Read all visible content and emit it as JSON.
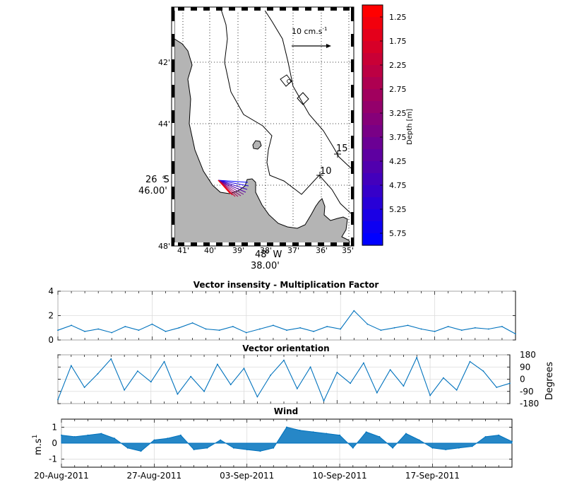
{
  "map": {
    "lat_ticks": [
      "42'",
      "44'",
      "48'"
    ],
    "lon_ticks": [
      "41'",
      "40'",
      "39'",
      "38'",
      "37'",
      "36'",
      "35'"
    ],
    "lat_label_deg": "26",
    "lat_label_hemi": "S",
    "lat_label_min": "46.00'",
    "lon_label_deg": "48",
    "lon_label_hemi": "W",
    "lon_label_min": "38.00'",
    "scale_text": "10 cm.s",
    "scale_sup": "-1",
    "station_labels": [
      "15",
      "10"
    ],
    "colors": {
      "land": "#b4b4b4",
      "coast": "#000000",
      "vector_blue": "#0000ff",
      "vector_red": "#ff0000"
    }
  },
  "colorbar": {
    "label": "Depth [m]",
    "ticks": [
      "1.25",
      "1.75",
      "2.25",
      "2.75",
      "3.25",
      "3.75",
      "4.25",
      "4.75",
      "5.25",
      "5.75"
    ],
    "top_color": "#ff0000",
    "bottom_color": "#0000ff"
  },
  "chart_data": [
    {
      "type": "line",
      "title": "Vector insensity - Multiplication Factor",
      "ylim": [
        0,
        4
      ],
      "yticks": [
        "4",
        "2",
        "0"
      ],
      "x_range": [
        "2011-08-20",
        "2011-09-23"
      ],
      "color": "#0072bd",
      "x": [
        "2011-08-20",
        "2011-08-21",
        "2011-08-22",
        "2011-08-23",
        "2011-08-24",
        "2011-08-25",
        "2011-08-26",
        "2011-08-27",
        "2011-08-28",
        "2011-08-29",
        "2011-08-30",
        "2011-08-31",
        "2011-09-01",
        "2011-09-02",
        "2011-09-03",
        "2011-09-04",
        "2011-09-05",
        "2011-09-06",
        "2011-09-07",
        "2011-09-08",
        "2011-09-09",
        "2011-09-10",
        "2011-09-11",
        "2011-09-12",
        "2011-09-13",
        "2011-09-14",
        "2011-09-15",
        "2011-09-16",
        "2011-09-17",
        "2011-09-18",
        "2011-09-19",
        "2011-09-20",
        "2011-09-21",
        "2011-09-22",
        "2011-09-23"
      ],
      "values": [
        0.8,
        1.2,
        0.7,
        0.9,
        0.6,
        1.1,
        0.8,
        1.3,
        0.7,
        1.0,
        1.4,
        0.9,
        0.8,
        1.1,
        0.6,
        0.9,
        1.2,
        0.8,
        1.0,
        0.7,
        1.1,
        0.9,
        2.4,
        1.3,
        0.8,
        1.0,
        1.2,
        0.9,
        0.7,
        1.1,
        0.8,
        1.0,
        0.9,
        1.1,
        0.5
      ]
    },
    {
      "type": "line",
      "title": "Vector orientation",
      "ylabel": "Degrees",
      "ylim": [
        -180,
        180
      ],
      "yticks": [
        "180",
        "90",
        "0",
        "-90",
        "-180"
      ],
      "x_range": [
        "2011-08-20",
        "2011-09-23"
      ],
      "color": "#0072bd",
      "x": [
        "2011-08-20",
        "2011-08-21",
        "2011-08-22",
        "2011-08-23",
        "2011-08-24",
        "2011-08-25",
        "2011-08-26",
        "2011-08-27",
        "2011-08-28",
        "2011-08-29",
        "2011-08-30",
        "2011-08-31",
        "2011-09-01",
        "2011-09-02",
        "2011-09-03",
        "2011-09-04",
        "2011-09-05",
        "2011-09-06",
        "2011-09-07",
        "2011-09-08",
        "2011-09-09",
        "2011-09-10",
        "2011-09-11",
        "2011-09-12",
        "2011-09-13",
        "2011-09-14",
        "2011-09-15",
        "2011-09-16",
        "2011-09-17",
        "2011-09-18",
        "2011-09-19",
        "2011-09-20",
        "2011-09-21",
        "2011-09-22",
        "2011-09-23"
      ],
      "values": [
        -150,
        100,
        -60,
        40,
        150,
        -80,
        60,
        -20,
        130,
        -110,
        20,
        -90,
        110,
        -40,
        80,
        -130,
        30,
        140,
        -70,
        90,
        -160,
        50,
        -30,
        120,
        -100,
        70,
        -50,
        160,
        -120,
        10,
        -80,
        130,
        60,
        -60,
        -30
      ]
    },
    {
      "type": "area",
      "title": "Wind",
      "ylabel": "m.s",
      "ylabel_sup": "1",
      "ylim": [
        -1.5,
        1.5
      ],
      "yticks": [
        "1",
        "0",
        "-1"
      ],
      "x_range": [
        "2011-08-20",
        "2011-09-23"
      ],
      "xtick_labels": [
        "20-Aug-2011",
        "27-Aug-2011",
        "03-Sep-2011",
        "10-Sep-2011",
        "17-Sep-2011"
      ],
      "color": "#0072bd",
      "x": [
        "2011-08-20",
        "2011-08-21",
        "2011-08-22",
        "2011-08-23",
        "2011-08-24",
        "2011-08-25",
        "2011-08-26",
        "2011-08-27",
        "2011-08-28",
        "2011-08-29",
        "2011-08-30",
        "2011-08-31",
        "2011-09-01",
        "2011-09-02",
        "2011-09-03",
        "2011-09-04",
        "2011-09-05",
        "2011-09-06",
        "2011-09-07",
        "2011-09-08",
        "2011-09-09",
        "2011-09-10",
        "2011-09-11",
        "2011-09-12",
        "2011-09-13",
        "2011-09-14",
        "2011-09-15",
        "2011-09-16",
        "2011-09-17",
        "2011-09-18",
        "2011-09-19",
        "2011-09-20",
        "2011-09-21",
        "2011-09-22",
        "2011-09-23"
      ],
      "values": [
        0.5,
        0.4,
        0.5,
        0.6,
        0.3,
        -0.3,
        -0.5,
        0.2,
        0.3,
        0.5,
        -0.4,
        -0.3,
        0.2,
        -0.3,
        -0.4,
        -0.5,
        -0.3,
        1.0,
        0.8,
        0.7,
        0.6,
        0.5,
        -0.3,
        0.7,
        0.4,
        -0.3,
        0.6,
        0.2,
        -0.3,
        -0.4,
        -0.3,
        -0.2,
        0.4,
        0.5,
        0.1
      ]
    }
  ]
}
